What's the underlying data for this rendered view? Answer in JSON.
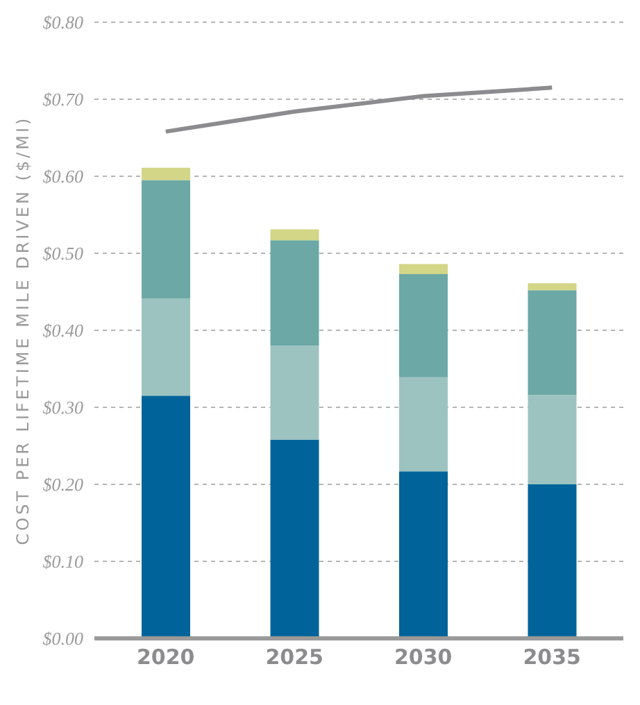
{
  "chart_data": {
    "type": "bar",
    "stacked": true,
    "categories": [
      "2020",
      "2025",
      "2030",
      "2035"
    ],
    "ylabel": "COST PER LIFETIME MILE DRIVEN ($/MI)",
    "ylim": [
      0,
      0.8
    ],
    "yticks": [
      {
        "value": 0,
        "label": "$0.00"
      },
      {
        "value": 0.1,
        "label": "$0.10"
      },
      {
        "value": 0.2,
        "label": "$0.20"
      },
      {
        "value": 0.3,
        "label": "$0.30"
      },
      {
        "value": 0.4,
        "label": "$0.40"
      },
      {
        "value": 0.5,
        "label": "$0.50"
      },
      {
        "value": 0.6,
        "label": "$0.60"
      },
      {
        "value": 0.7,
        "label": "$0.70"
      },
      {
        "value": 0.8,
        "label": "$0.80"
      }
    ],
    "grid": "y",
    "marker": "none",
    "series": [
      {
        "color": "#00649a",
        "values": [
          0.315,
          0.258,
          0.217,
          0.2
        ]
      },
      {
        "color": "#9dc3c1",
        "values": [
          0.126,
          0.122,
          0.122,
          0.116
        ]
      },
      {
        "color": "#6ca8a5",
        "values": [
          0.154,
          0.137,
          0.134,
          0.136
        ]
      },
      {
        "color": "#d3d587",
        "values": [
          0.016,
          0.014,
          0.013,
          0.009
        ]
      },
      {
        "type": "line",
        "color": "#8c8c8e",
        "values": [
          0.658,
          0.684,
          0.704,
          0.715
        ]
      }
    ]
  }
}
